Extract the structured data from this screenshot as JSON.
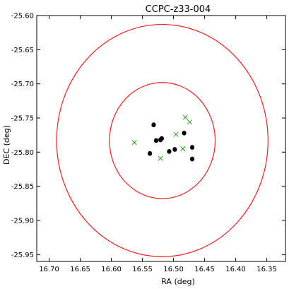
{
  "chart_data": {
    "type": "scatter",
    "title": "CCPC-z33-004",
    "xlabel": "RA (deg)",
    "ylabel": "DEC (deg)",
    "xlim": [
      16.72,
      16.32
    ],
    "ylim": [
      -25.96,
      -25.6
    ],
    "x_inverted": true,
    "grid": false,
    "xticks": [
      "16.70",
      "16.65",
      "16.60",
      "16.55",
      "16.50",
      "16.45",
      "16.40",
      "16.35"
    ],
    "yticks": [
      "-25.60",
      "-25.65",
      "-25.70",
      "-25.75",
      "-25.80",
      "-25.85",
      "-25.90",
      "-25.95"
    ],
    "circles": [
      {
        "center": [
          16.518,
          -25.783
        ],
        "radius_deg": 0.17,
        "color": "#e8211f"
      },
      {
        "center": [
          16.518,
          -25.783
        ],
        "radius_deg": 0.085,
        "color": "#e8211f"
      }
    ],
    "series": [
      {
        "marker": "filled-circle",
        "color": "#000000",
        "points": [
          [
            16.532,
            -25.76
          ],
          [
            16.528,
            -25.783
          ],
          [
            16.521,
            -25.782
          ],
          [
            16.519,
            -25.78
          ],
          [
            16.538,
            -25.802
          ],
          [
            16.507,
            -25.799
          ],
          [
            16.498,
            -25.796
          ],
          [
            16.483,
            -25.772
          ],
          [
            16.47,
            -25.793
          ],
          [
            16.47,
            -25.81
          ]
        ]
      },
      {
        "marker": "x",
        "color": "#3a9e2f",
        "points": [
          [
            16.563,
            -25.786
          ],
          [
            16.521,
            -25.809
          ],
          [
            16.496,
            -25.774
          ],
          [
            16.485,
            -25.795
          ],
          [
            16.481,
            -25.749
          ],
          [
            16.474,
            -25.756
          ]
        ]
      }
    ]
  }
}
